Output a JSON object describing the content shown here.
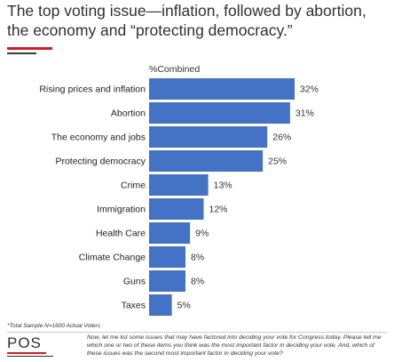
{
  "title": "The top voting issue—inflation, followed by abortion, the economy and “protecting democracy.”",
  "footnote": "*Total Sample N=1600 Actual Voters",
  "logo_text": "POS",
  "question": "Now, let me list some issues that may have factored into deciding your vote for Congress today. Please tell me which one or two of these items you think was the most important factor in deciding your vote. And, which of these issues was the second most important factor in deciding your vote?",
  "colors": {
    "bar": "#4472c4",
    "accent": "#c8202a"
  },
  "chart_data": {
    "type": "bar",
    "orientation": "horizontal",
    "series": [
      {
        "name": "%Combined",
        "values": [
          32,
          31,
          26,
          25,
          13,
          12,
          9,
          8,
          8,
          5
        ]
      }
    ],
    "categories": [
      "Rising prices and inflation",
      "Abortion",
      "The economy and jobs",
      "Protecting democracy",
      "Crime",
      "Immigration",
      "Health Care",
      "Climate Change",
      "Guns",
      "Taxes"
    ],
    "value_labels": [
      "32%",
      "31%",
      "26%",
      "25%",
      "13%",
      "12%",
      "9%",
      "8%",
      "8%",
      "5%"
    ],
    "xlim": [
      0,
      32
    ],
    "grid": false
  }
}
